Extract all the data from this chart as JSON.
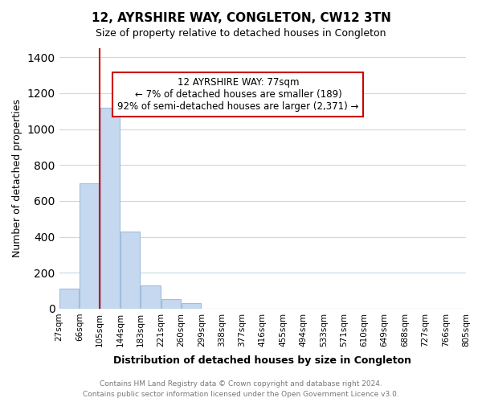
{
  "title": "12, AYRSHIRE WAY, CONGLETON, CW12 3TN",
  "subtitle": "Size of property relative to detached houses in Congleton",
  "xlabel": "Distribution of detached houses by size in Congleton",
  "ylabel": "Number of detached properties",
  "bar_values": [
    110,
    700,
    1120,
    430,
    130,
    55,
    30,
    0,
    0,
    0,
    0,
    0,
    0,
    0,
    0,
    0,
    0,
    0,
    0,
    0
  ],
  "bin_labels": [
    "27sqm",
    "66sqm",
    "105sqm",
    "144sqm",
    "183sqm",
    "221sqm",
    "260sqm",
    "299sqm",
    "338sqm",
    "377sqm",
    "416sqm",
    "455sqm",
    "494sqm",
    "533sqm",
    "571sqm",
    "610sqm",
    "649sqm",
    "688sqm",
    "727sqm",
    "766sqm",
    "805sqm"
  ],
  "bar_color": "#c5d8f0",
  "bar_edge_color": "#a0bedd",
  "annotation_title": "12 AYRSHIRE WAY: 77sqm",
  "annotation_line1": "← 7% of detached houses are smaller (189)",
  "annotation_line2": "92% of semi-detached houses are larger (2,371) →",
  "annotation_box_color": "#ffffff",
  "annotation_box_edge": "#cc0000",
  "vertical_line_color": "#cc0000",
  "ylim": [
    0,
    1450
  ],
  "yticks": [
    0,
    200,
    400,
    600,
    800,
    1000,
    1200,
    1400
  ],
  "footer_line1": "Contains HM Land Registry data © Crown copyright and database right 2024.",
  "footer_line2": "Contains public sector information licensed under the Open Government Licence v3.0.",
  "background_color": "#ffffff",
  "grid_color": "#c8d8e8",
  "figsize": [
    6.0,
    5.0
  ],
  "dpi": 100
}
